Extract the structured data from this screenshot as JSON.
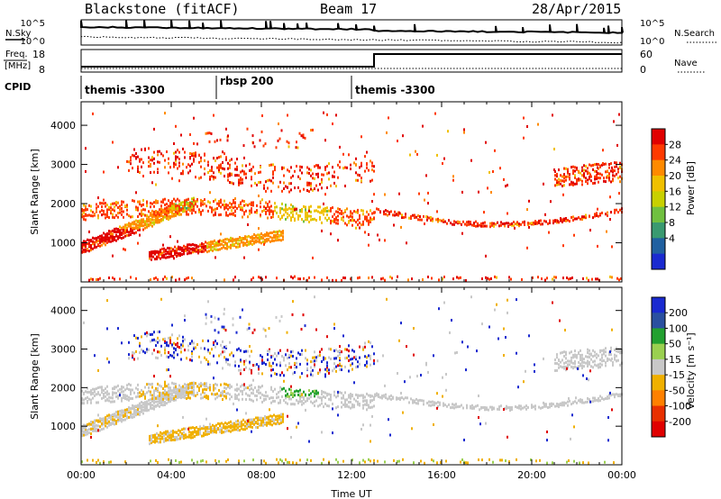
{
  "header": {
    "station": "Blackstone (fitACF)",
    "beam": "Beam 17",
    "date": "28/Apr/2015"
  },
  "top_panel": {
    "left_label": "N.Sky",
    "right_label": "N.Search",
    "left_ticks": [
      "10^5",
      "10^0"
    ],
    "right_ticks": [
      "10^5",
      "10^0"
    ]
  },
  "freq_panel": {
    "left_label_top": "Freq.",
    "left_label_bottom": "[MHz]",
    "right_label": "Nave",
    "left_ticks": [
      "18",
      "8"
    ],
    "right_ticks": [
      "60",
      "0"
    ]
  },
  "cpid_panel": {
    "label": "CPID",
    "programs": [
      {
        "name": "themis -3300",
        "start_hour": 0
      },
      {
        "name": "rbsp 200",
        "start_hour": 6
      },
      {
        "name": "themis -3300",
        "start_hour": 12
      }
    ]
  },
  "chart_data": [
    {
      "type": "heatmap",
      "quantity": "power",
      "ylabel": "Slant Range [km]",
      "ylim": [
        0,
        4600
      ],
      "yticks": [
        "1000",
        "2000",
        "3000",
        "4000"
      ],
      "xlim_hours": [
        0,
        24
      ],
      "colorbar_label": "Power [dB]",
      "colorbar_ticks": [
        "28",
        "24",
        "20",
        "16",
        "12",
        "8",
        "4"
      ],
      "colors": [
        "#e00000",
        "#ff3a00",
        "#ff8a00",
        "#f0c000",
        "#c8d000",
        "#70c040",
        "#3a9a70",
        "#2060a0",
        "#1a2ad0"
      ]
    },
    {
      "type": "heatmap",
      "quantity": "velocity",
      "ylabel": "Slant Range [km]",
      "ylim": [
        0,
        4600
      ],
      "yticks": [
        "1000",
        "2000",
        "3000",
        "4000"
      ],
      "xlim_hours": [
        0,
        24
      ],
      "xlabel": "Time UT",
      "xticks": [
        "00:00",
        "04:00",
        "08:00",
        "12:00",
        "16:00",
        "20:00",
        "00:00"
      ],
      "colorbar_label": "Velocity [m s⁻¹]",
      "colorbar_ticks": [
        "200",
        "100",
        "50",
        "15",
        "-15",
        "-50",
        "-100",
        "-200"
      ],
      "colors": [
        "#1a2ad0",
        "#2a50a0",
        "#22a030",
        "#9ad050",
        "#c8c8c8",
        "#f0b000",
        "#ff8000",
        "#e83000",
        "#e00000"
      ]
    }
  ]
}
